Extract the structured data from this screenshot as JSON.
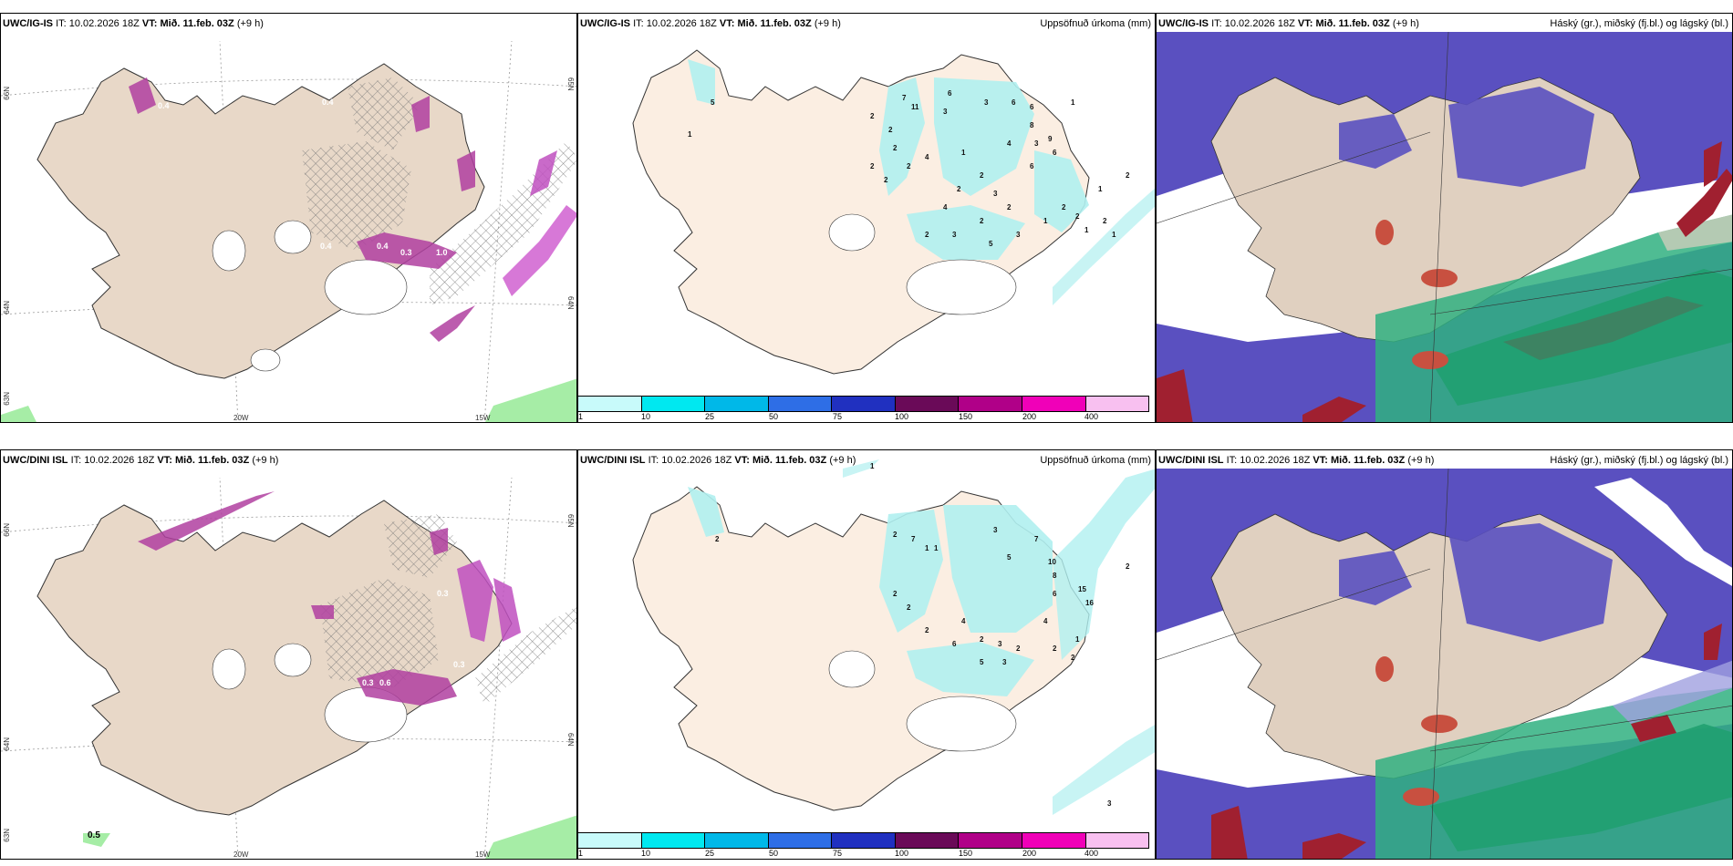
{
  "rows": [
    {
      "model": "UWC/IG-IS",
      "it_label": "IT:",
      "it_value": "10.02.2026 18Z",
      "vt_label": "VT:",
      "vt_value": "Mið. 11.feb. 03Z",
      "lead": "(+9 h)"
    },
    {
      "model": "UWC/DINI ISL",
      "it_label": "IT:",
      "it_value": "10.02.2026 18Z",
      "vt_label": "VT:",
      "vt_value": "Mið. 11.feb. 03Z",
      "lead": "(+9 h)"
    }
  ],
  "precip_title": "Uppsöfnuð úrkoma (mm)",
  "cloud_title": "Háský (gr.), miðský (fj.bl.) og lágský (bl.)",
  "colorbar": {
    "labels": [
      "1",
      "10",
      "25",
      "50",
      "75",
      "100",
      "150",
      "200",
      "400"
    ],
    "colors": [
      "#c8fafa",
      "#00e8f0",
      "#00b8e8",
      "#2e6ee6",
      "#2030c0",
      "#6a0a58",
      "#b00088",
      "#f000b8",
      "#f8c0f0"
    ]
  },
  "axes": {
    "lat66": "66N",
    "lat65": "65N",
    "lat64": "64N",
    "lat63": "63N",
    "lon20": "20W",
    "lon15": "15W"
  },
  "wind_values_top": [
    "0.4",
    "0.4",
    "0.4",
    "0.3",
    "1.0",
    "0.4",
    "0.8"
  ],
  "wind_values_bottom": [
    "0.5",
    "0.3",
    "0.6",
    "0.3",
    "0.3"
  ],
  "precip_labels_top": [
    "1",
    "5",
    "7",
    "11",
    "6",
    "3",
    "6",
    "6",
    "1",
    "3",
    "2",
    "2",
    "4",
    "3",
    "8",
    "9",
    "6",
    "6",
    "2",
    "2",
    "4",
    "2",
    "2",
    "1",
    "2",
    "2",
    "3",
    "2",
    "4",
    "2",
    "2",
    "3",
    "5",
    "3",
    "1",
    "2",
    "2",
    "1",
    "2",
    "1",
    "1",
    "2"
  ],
  "precip_labels_bottom": [
    "1",
    "2",
    "7",
    "2",
    "1",
    "1",
    "3",
    "5",
    "7",
    "10",
    "8",
    "15",
    "6",
    "16",
    "2",
    "2",
    "4",
    "2",
    "6",
    "2",
    "3",
    "2",
    "5",
    "3",
    "4",
    "1",
    "2",
    "2",
    "2",
    "3"
  ]
}
